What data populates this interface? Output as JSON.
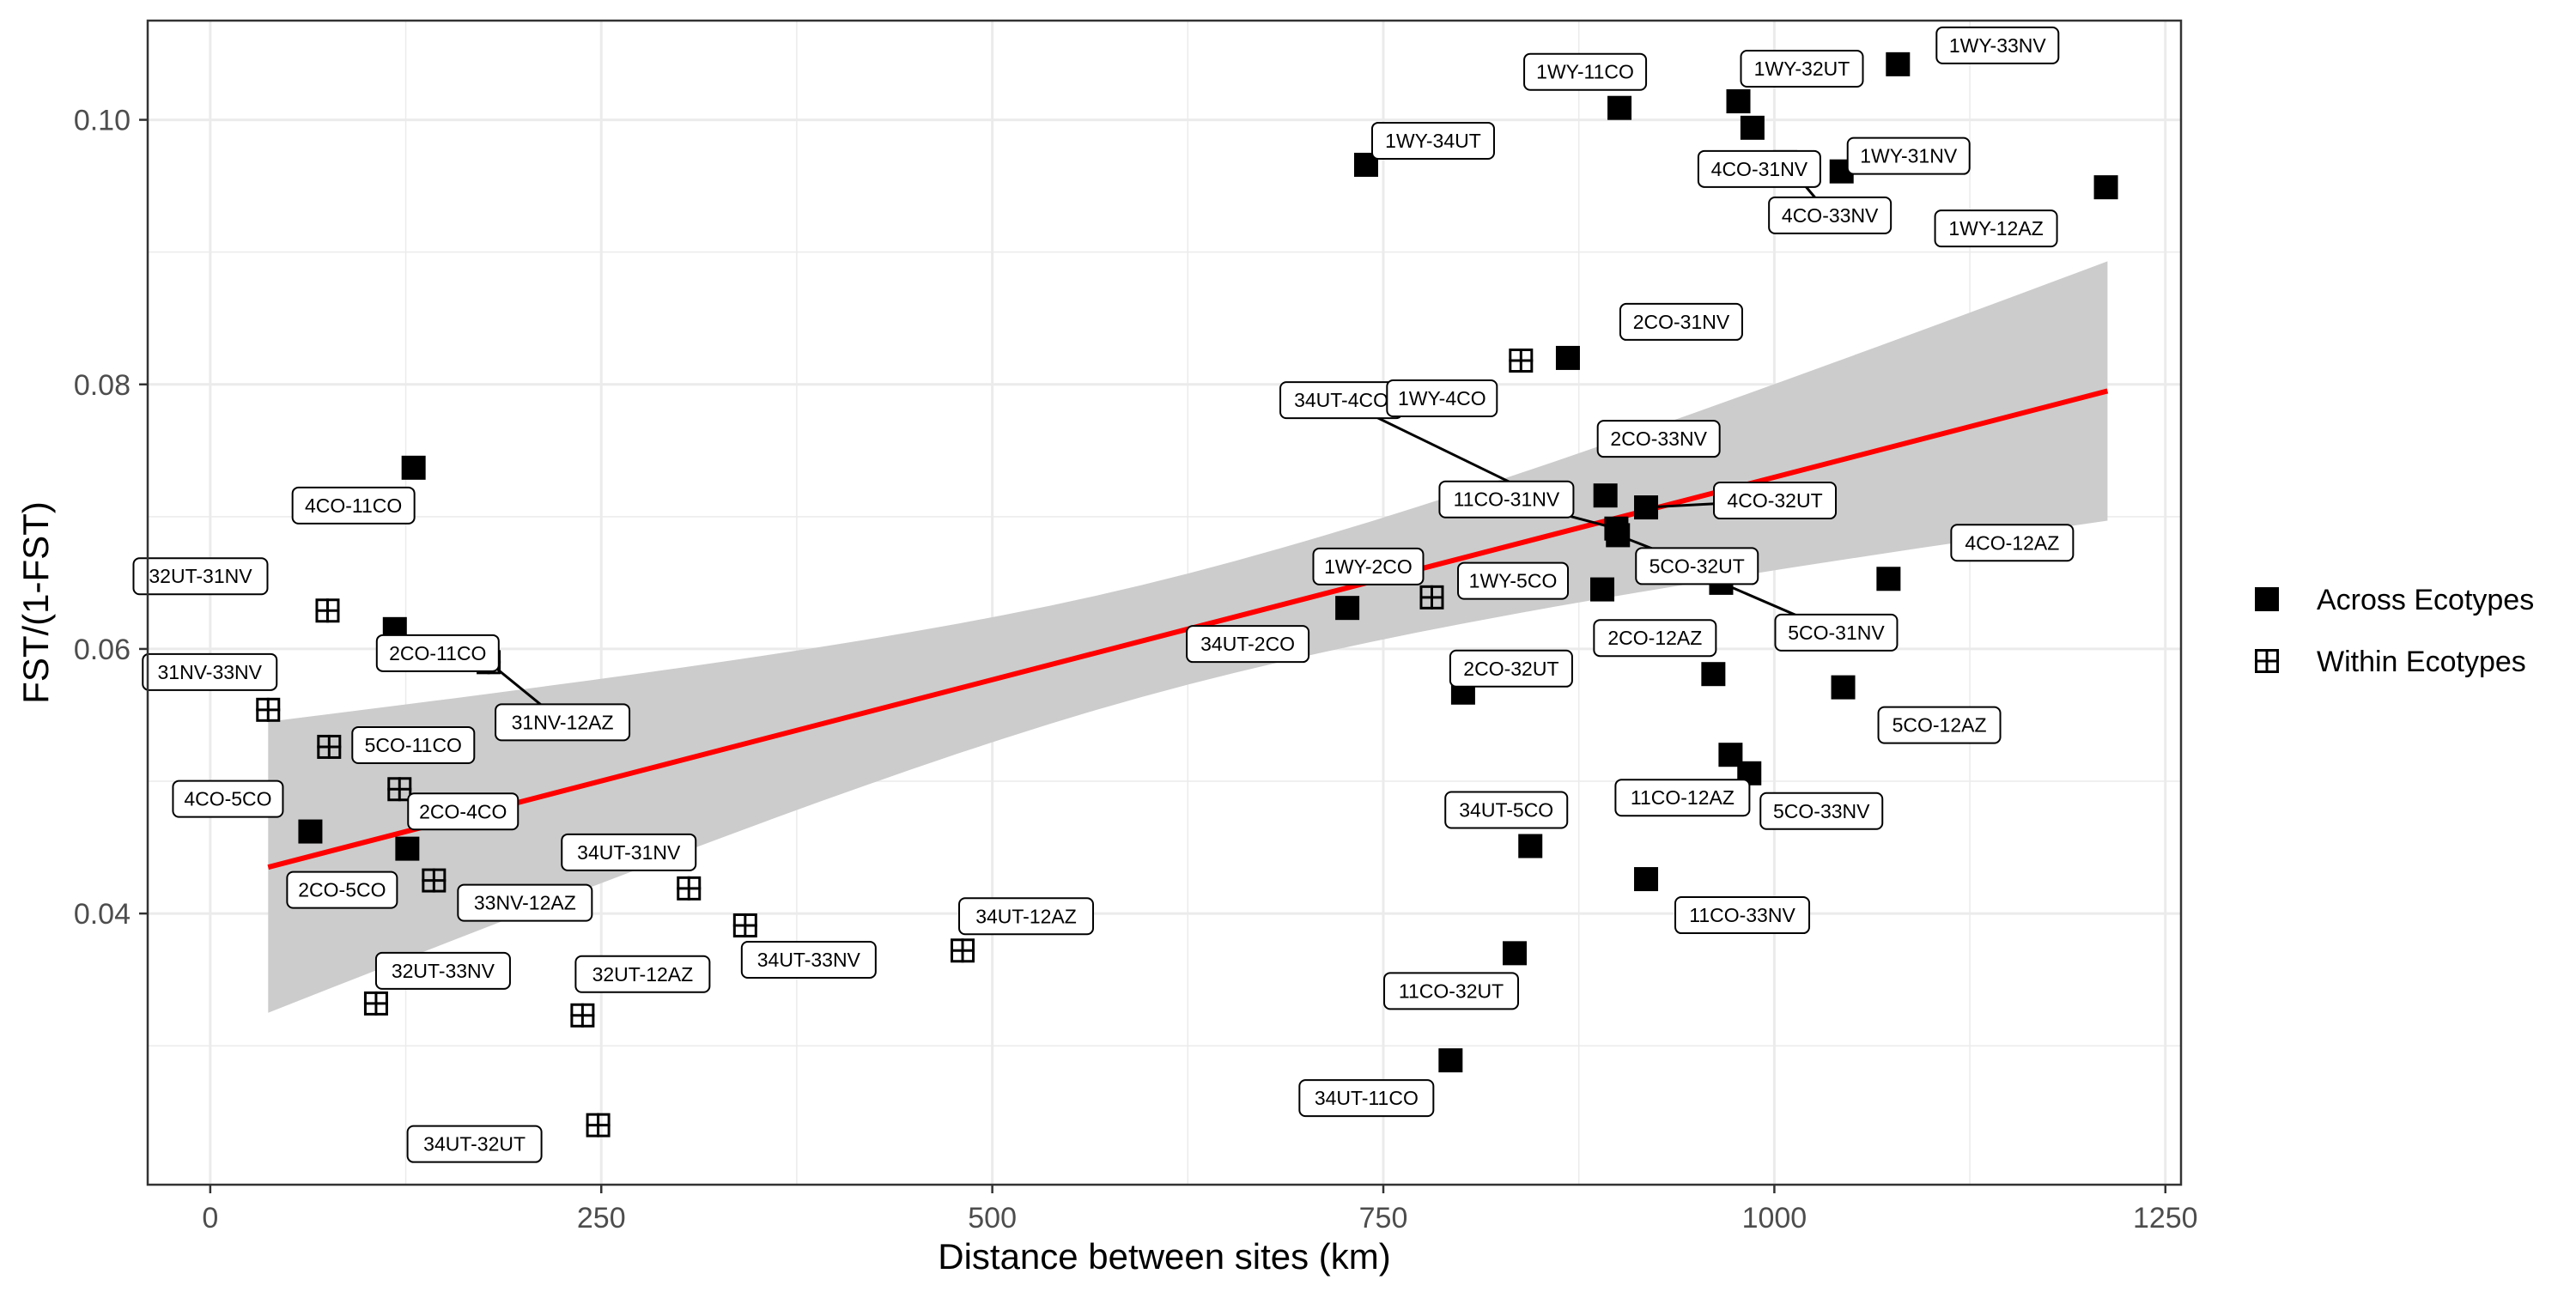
{
  "chart_data": {
    "type": "scatter",
    "xlabel": "Distance between sites (km)",
    "ylabel": "FST/(1-FST)",
    "xlim": [
      -40,
      1260
    ],
    "ylim": [
      0.0195,
      0.1075
    ],
    "xticks": [
      0,
      250,
      500,
      750,
      1000,
      1250
    ],
    "yticks": [
      0.04,
      0.06,
      0.08,
      0.1
    ],
    "yticks_minor": [
      0.03,
      0.05,
      0.07,
      0.09
    ],
    "xticks_minor": [
      125,
      375,
      625,
      875,
      1125
    ],
    "grid": true,
    "legend_position": "right",
    "legend": [
      {
        "key": "across",
        "label": "Across Ecotypes",
        "marker": "filled-square"
      },
      {
        "key": "within",
        "label": "Within Ecotypes",
        "marker": "boxed-plus"
      }
    ],
    "colors": {
      "fit_line": "#ff0000",
      "confidence_band": "#cccccc",
      "point": "#000000",
      "grid": "#ebebeb"
    },
    "regression": {
      "x": [
        37,
        1213
      ],
      "y": [
        0.0435,
        0.0795
      ],
      "ci_lower": [
        0.0325,
        0.0697
      ],
      "ci_upper": [
        0.0545,
        0.0893
      ]
    },
    "series": [
      {
        "name": "Across Ecotypes",
        "points": [
          {
            "label": "1WY-33NV",
            "x": 1079,
            "y": 0.1042
          },
          {
            "label": "1WY-32UT",
            "x": 977,
            "y": 0.1014
          },
          {
            "label": "1WY-11CO",
            "x": 901,
            "y": 0.1009
          },
          {
            "label": "4CO-31NV",
            "x": 986,
            "y": 0.0994
          },
          {
            "label": "1WY-34UT",
            "x": 739,
            "y": 0.0966
          },
          {
            "label": "4CO-33NV",
            "x": 1007,
            "y": 0.0968
          },
          {
            "label": "1WY-31NV",
            "x": 1043,
            "y": 0.0961
          },
          {
            "label": "1WY-12AZ",
            "x": 1212,
            "y": 0.0949
          },
          {
            "label": "2CO-31NV",
            "x": 868,
            "y": 0.082
          },
          {
            "label": "4CO-11CO",
            "x": 130,
            "y": 0.0737
          },
          {
            "label": "34UT-4CO",
            "x": 845,
            "y": 0.0718
          },
          {
            "label": "2CO-33NV",
            "x": 892,
            "y": 0.0716
          },
          {
            "label": "4CO-32UT",
            "x": 918,
            "y": 0.0707
          },
          {
            "label": "11CO-31NV",
            "x": 899,
            "y": 0.0691
          },
          {
            "label": "5CO-32UT",
            "x": 900,
            "y": 0.0686
          },
          {
            "label": "4CO-12AZ",
            "x": 1073,
            "y": 0.0653
          },
          {
            "label": "5CO-31NV",
            "x": 966,
            "y": 0.065
          },
          {
            "label": "1WY-5CO",
            "x": 890,
            "y": 0.0645
          },
          {
            "label": "34UT-2CO",
            "x": 727,
            "y": 0.0631
          },
          {
            "label": "2CO-11CO",
            "x": 118,
            "y": 0.0615
          },
          {
            "label": "2CO-12AZ",
            "x": 961,
            "y": 0.0581
          },
          {
            "label": "5CO-12AZ",
            "x": 1044,
            "y": 0.0571
          },
          {
            "label": "2CO-32UT",
            "x": 801,
            "y": 0.0567
          },
          {
            "label": "11CO-12AZ",
            "x": 972,
            "y": 0.052
          },
          {
            "label": "5CO-33NV",
            "x": 984,
            "y": 0.0506
          },
          {
            "label": "4CO-5CO",
            "x": 64,
            "y": 0.0462
          },
          {
            "label": "34UT-5CO",
            "x": 844,
            "y": 0.0451
          },
          {
            "label": "2CO-5CO",
            "x": 126,
            "y": 0.0449
          },
          {
            "label": "11CO-33NV",
            "x": 918,
            "y": 0.0426
          },
          {
            "label": "11CO-32UT",
            "x": 834,
            "y": 0.037
          },
          {
            "label": "34UT-11CO",
            "x": 793,
            "y": 0.0289
          }
        ]
      },
      {
        "name": "Within Ecotypes",
        "points": [
          {
            "label": "1WY-4CO",
            "x": 838,
            "y": 0.0818
          },
          {
            "label": "1WY-2CO",
            "x": 781,
            "y": 0.0639
          },
          {
            "label": "32UT-31NV",
            "x": 75,
            "y": 0.0629
          },
          {
            "label": "31NV-12AZ",
            "x": 178,
            "y": 0.059
          },
          {
            "label": "31NV-33NV",
            "x": 37,
            "y": 0.0554
          },
          {
            "label": "5CO-11CO",
            "x": 76,
            "y": 0.0526
          },
          {
            "label": "2CO-4CO",
            "x": 121,
            "y": 0.0494
          },
          {
            "label": "33NV-12AZ",
            "x": 143,
            "y": 0.0425
          },
          {
            "label": "34UT-31NV",
            "x": 306,
            "y": 0.0419
          },
          {
            "label": "34UT-33NV",
            "x": 342,
            "y": 0.0391
          },
          {
            "label": "34UT-12AZ",
            "x": 481,
            "y": 0.0372
          },
          {
            "label": "32UT-33NV",
            "x": 106,
            "y": 0.0332
          },
          {
            "label": "32UT-12AZ",
            "x": 238,
            "y": 0.0323
          },
          {
            "label": "34UT-32UT",
            "x": 248,
            "y": 0.024
          }
        ]
      }
    ]
  }
}
